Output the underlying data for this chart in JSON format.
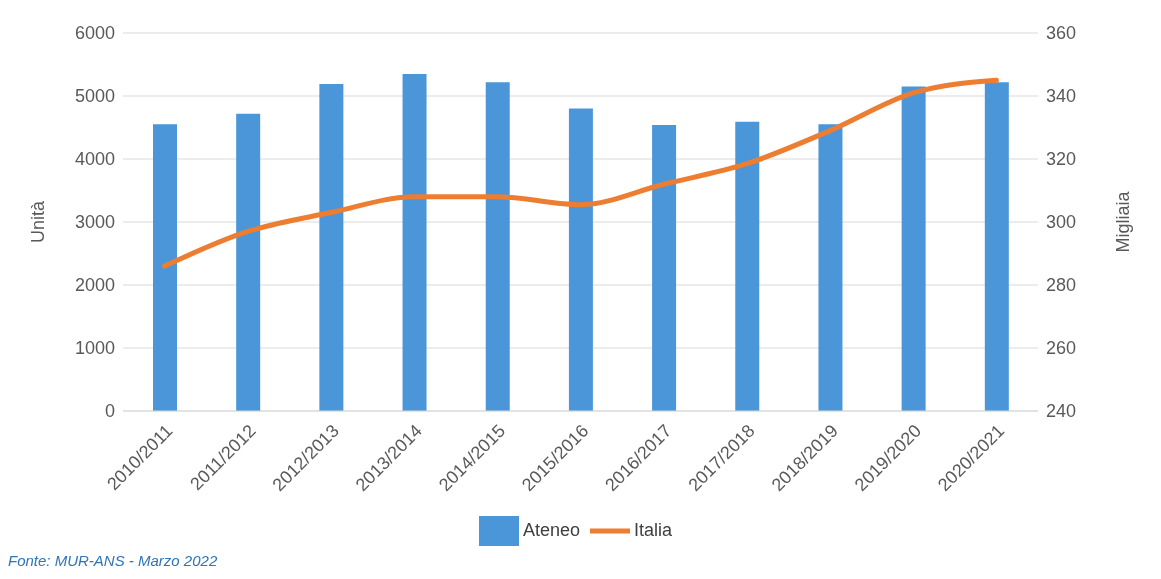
{
  "chart_data": {
    "type": "bar",
    "categories": [
      "2010/2011",
      "2011/2012",
      "2012/2013",
      "2013/2014",
      "2014/2015",
      "2015/2016",
      "2016/2017",
      "2017/2018",
      "2018/2019",
      "2019/2020",
      "2020/2021"
    ],
    "series": [
      {
        "name": "Ateneo",
        "color": "#4a96d9",
        "values": [
          4550,
          4720,
          5190,
          5350,
          5220,
          4800,
          4540,
          4590,
          4550,
          5150,
          5220
        ]
      },
      {
        "name": "Italia",
        "type": "line",
        "axis": "y2",
        "color": "#ed7d31",
        "values": [
          286,
          297,
          303,
          308,
          308,
          305.5,
          312,
          318.5,
          329,
          341,
          345
        ]
      }
    ],
    "ylabel": "Unità",
    "y2label": "Migliaia",
    "ylim": [
      0,
      6000
    ],
    "yticks": [
      0,
      1000,
      2000,
      3000,
      4000,
      5000,
      6000
    ],
    "y2lim": [
      240,
      360
    ],
    "y2ticks": [
      240,
      260,
      280,
      300,
      320,
      340,
      360
    ],
    "grid": "y",
    "legend": "bottom",
    "marker": "none",
    "annotations": [
      "Fonte: MUR-ANS - Marzo 2022"
    ]
  }
}
